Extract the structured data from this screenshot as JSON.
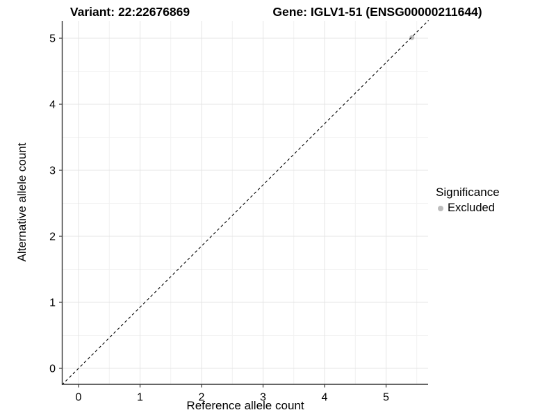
{
  "title": {
    "variant": "Variant: 22:22676869",
    "gene": "Gene: IGLV1-51 (ENSG00000211644)"
  },
  "chart_data": {
    "type": "scatter",
    "title": "Variant: 22:22676869   Gene: IGLV1-51 (ENSG00000211644)",
    "xlabel": "Reference allele count",
    "ylabel": "Alternative allele count",
    "x_ticks": [
      0,
      1,
      2,
      3,
      4,
      5
    ],
    "y_ticks": [
      0,
      1,
      2,
      3,
      4,
      5
    ],
    "xlim": [
      -0.27,
      5.69
    ],
    "ylim": [
      -0.25,
      5.27
    ],
    "grid": {
      "major": true,
      "minor": true
    },
    "reference_line": {
      "type": "identity",
      "style": "dashed",
      "color": "#000000",
      "x1": -0.27,
      "y1": -0.25,
      "x2": 5.69,
      "y2": 5.27
    },
    "series": [
      {
        "name": "Excluded",
        "color": "#bdbdbd",
        "points": [
          [
            5.42,
            5.01
          ]
        ]
      }
    ],
    "legend": {
      "title": "Significance",
      "position": "right",
      "entries": [
        {
          "label": "Excluded",
          "color": "#bdbdbd"
        }
      ]
    }
  },
  "colors": {
    "background": "#ffffff",
    "grid_major": "#e4e4e4",
    "grid_minor": "#f1f1f1",
    "axis": "#333333",
    "text": "#000000",
    "excluded_point": "#bdbdbd",
    "reference_line": "#000000"
  }
}
